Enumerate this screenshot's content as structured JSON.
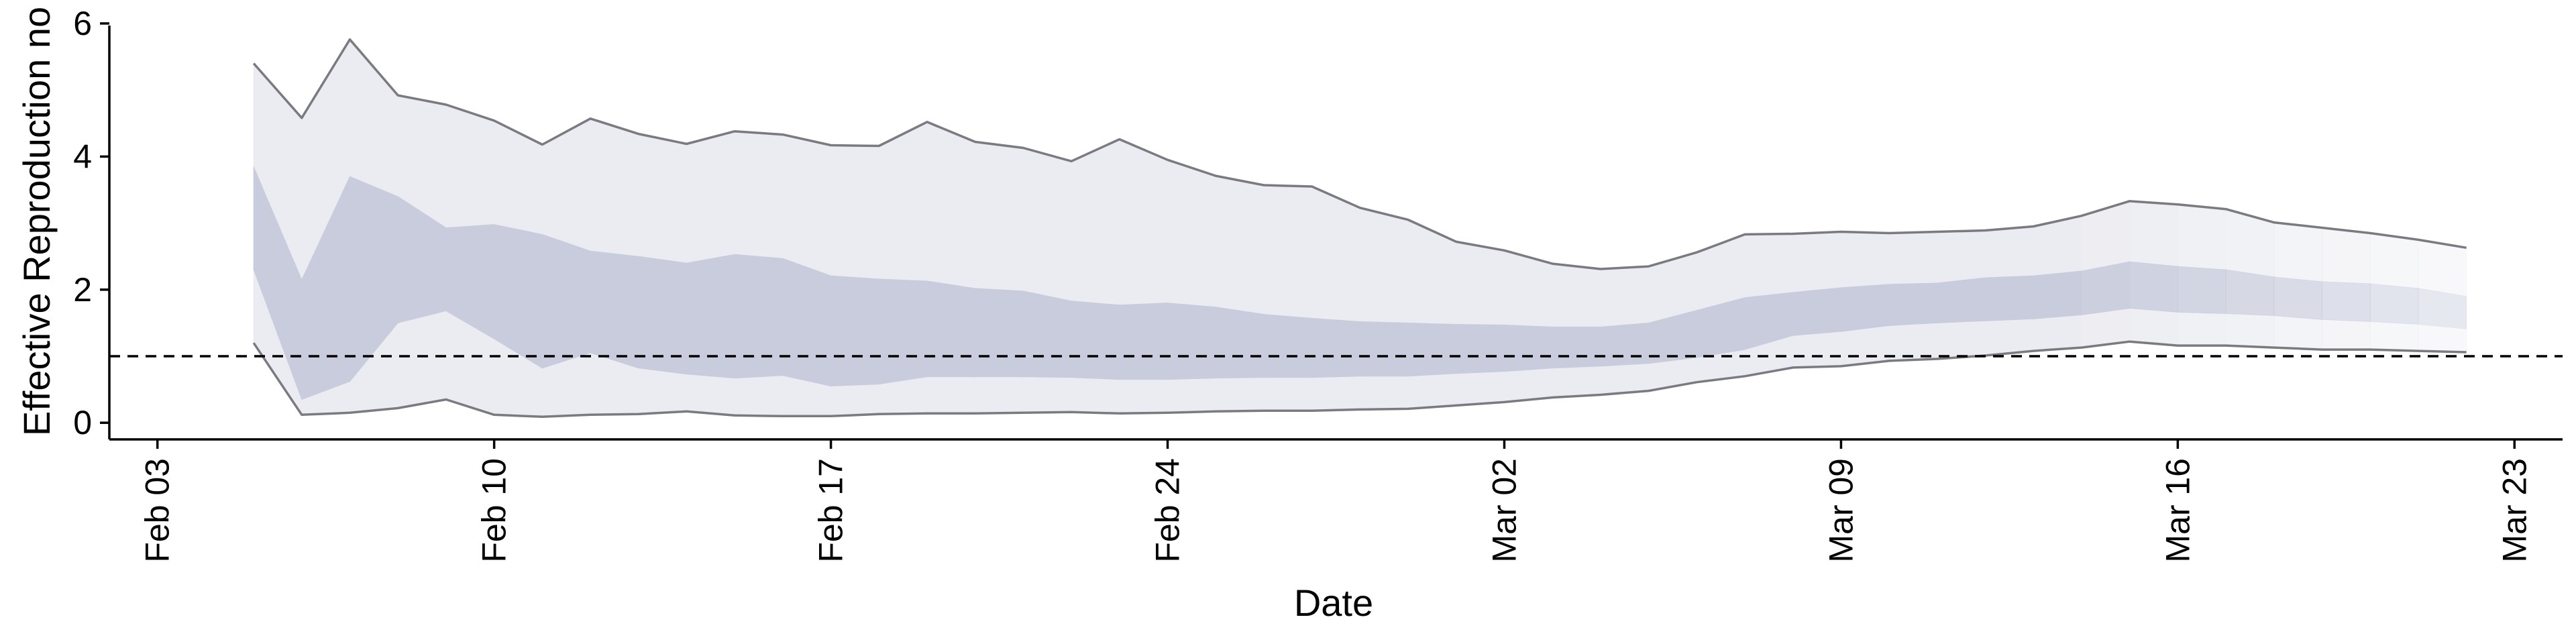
{
  "chart_data": {
    "type": "area",
    "xlabel": "Date",
    "ylabel": "Effective Reproduction no",
    "xlim": [
      "2020-02-02",
      "2020-03-24"
    ],
    "ylim": [
      -0.25,
      6.05
    ],
    "x_ticks": [
      {
        "date": "2020-02-03",
        "label": "Feb 03"
      },
      {
        "date": "2020-02-10",
        "label": "Feb 10"
      },
      {
        "date": "2020-02-17",
        "label": "Feb 17"
      },
      {
        "date": "2020-02-24",
        "label": "Feb 24"
      },
      {
        "date": "2020-03-02",
        "label": "Mar 02"
      },
      {
        "date": "2020-03-09",
        "label": "Mar 09"
      },
      {
        "date": "2020-03-16",
        "label": "Mar 16"
      },
      {
        "date": "2020-03-23",
        "label": "Mar 23"
      }
    ],
    "y_ticks": [
      0,
      2,
      4,
      6
    ],
    "reference_line": {
      "y": 1,
      "style": "dashed",
      "color": "#000000"
    },
    "grid": false,
    "x": [
      "2020-02-05",
      "2020-02-06",
      "2020-02-07",
      "2020-02-08",
      "2020-02-09",
      "2020-02-10",
      "2020-02-11",
      "2020-02-12",
      "2020-02-13",
      "2020-02-14",
      "2020-02-15",
      "2020-02-16",
      "2020-02-17",
      "2020-02-18",
      "2020-02-19",
      "2020-02-20",
      "2020-02-21",
      "2020-02-22",
      "2020-02-23",
      "2020-02-24",
      "2020-02-25",
      "2020-02-26",
      "2020-02-27",
      "2020-02-28",
      "2020-02-29",
      "2020-03-01",
      "2020-03-02",
      "2020-03-03",
      "2020-03-04",
      "2020-03-05",
      "2020-03-06",
      "2020-03-07",
      "2020-03-08",
      "2020-03-09",
      "2020-03-10",
      "2020-03-11",
      "2020-03-12",
      "2020-03-13",
      "2020-03-14",
      "2020-03-15",
      "2020-03-16",
      "2020-03-17",
      "2020-03-18",
      "2020-03-19",
      "2020-03-20",
      "2020-03-21",
      "2020-03-22"
    ],
    "series": [
      {
        "role": "outer_band",
        "fill": "#ebecf1",
        "line_color": "#7a7a80",
        "upper": [
          5.4,
          4.58,
          5.76,
          4.92,
          4.78,
          4.54,
          4.18,
          4.57,
          4.34,
          4.19,
          4.38,
          4.33,
          4.17,
          4.16,
          4.52,
          4.22,
          4.13,
          3.93,
          4.26,
          3.95,
          3.71,
          3.57,
          3.55,
          3.23,
          3.05,
          2.72,
          2.59,
          2.39,
          2.31,
          2.35,
          2.56,
          2.83,
          2.84,
          2.87,
          2.85,
          2.87,
          2.89,
          2.95,
          3.11,
          3.33,
          3.28,
          3.21,
          3.01,
          2.93,
          2.85,
          2.75,
          2.63
        ],
        "lower": [
          1.2,
          0.12,
          0.15,
          0.22,
          0.35,
          0.12,
          0.09,
          0.12,
          0.13,
          0.17,
          0.11,
          0.1,
          0.1,
          0.13,
          0.14,
          0.14,
          0.15,
          0.16,
          0.14,
          0.15,
          0.17,
          0.18,
          0.18,
          0.2,
          0.21,
          0.26,
          0.31,
          0.38,
          0.42,
          0.48,
          0.61,
          0.7,
          0.83,
          0.85,
          0.93,
          0.96,
          1.01,
          1.08,
          1.13,
          1.22,
          1.16,
          1.16,
          1.13,
          1.1,
          1.1,
          1.08,
          1.06
        ]
      },
      {
        "role": "inner_band",
        "fill": "#c8ccdc",
        "upper": [
          3.85,
          2.15,
          3.7,
          3.4,
          2.93,
          2.98,
          2.83,
          2.58,
          2.5,
          2.4,
          2.53,
          2.47,
          2.21,
          2.16,
          2.13,
          2.02,
          1.98,
          1.83,
          1.77,
          1.8,
          1.74,
          1.63,
          1.57,
          1.52,
          1.5,
          1.48,
          1.47,
          1.44,
          1.44,
          1.5,
          1.69,
          1.88,
          1.96,
          2.03,
          2.08,
          2.1,
          2.18,
          2.21,
          2.28,
          2.42,
          2.35,
          2.3,
          2.19,
          2.12,
          2.09,
          2.02,
          1.9
        ],
        "lower": [
          2.3,
          0.35,
          0.62,
          1.5,
          1.68,
          1.26,
          0.82,
          1.05,
          0.82,
          0.73,
          0.67,
          0.71,
          0.55,
          0.58,
          0.69,
          0.69,
          0.69,
          0.68,
          0.65,
          0.65,
          0.67,
          0.68,
          0.68,
          0.7,
          0.7,
          0.74,
          0.77,
          0.82,
          0.85,
          0.89,
          0.98,
          1.1,
          1.31,
          1.37,
          1.46,
          1.5,
          1.53,
          1.56,
          1.62,
          1.72,
          1.66,
          1.64,
          1.61,
          1.55,
          1.52,
          1.48,
          1.41
        ]
      }
    ]
  }
}
